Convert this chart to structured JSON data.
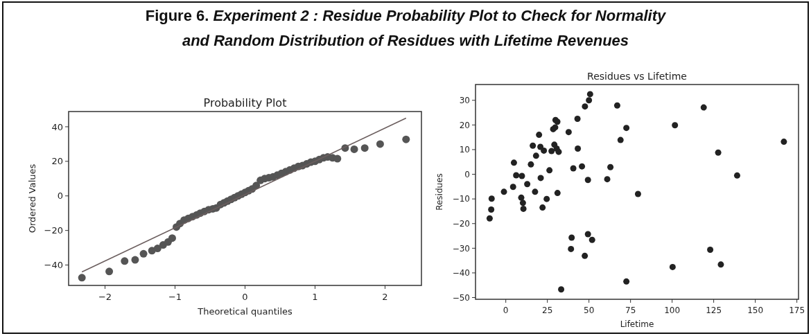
{
  "chart_data": [
    {
      "type": "scatter",
      "title": "Probability Plot",
      "xlabel": "Theoretical quantiles",
      "ylabel": "Ordered Values",
      "annotations": [
        "Figure 6. Experiment 2 : Residue Probability Plot to Check for Normality",
        "and Random Distribution of Residues with Lifetime Revenues"
      ],
      "xlim": [
        -2.52,
        2.52
      ],
      "ylim": [
        -51.8,
        48.8
      ],
      "xticks": [
        {
          "value": -2,
          "label": "−2"
        },
        {
          "value": -1,
          "label": "−1"
        },
        0,
        1,
        2
      ],
      "yticks": [
        {
          "value": -40,
          "label": "−40"
        },
        {
          "value": -20,
          "label": "−20"
        },
        0,
        20,
        40
      ],
      "series": [
        {
          "marker": "circle",
          "color": "#555555",
          "x": [
            -2.33,
            -1.94,
            -1.72,
            -1.57,
            -1.45,
            -1.33,
            -1.25,
            -1.17,
            -1.1,
            -1.04,
            -0.98,
            -0.93,
            -0.87,
            -0.81,
            -0.75,
            -0.69,
            -0.64,
            -0.58,
            -0.52,
            -0.46,
            -0.41,
            -0.35,
            -0.3,
            -0.25,
            -0.2,
            -0.15,
            -0.1,
            -0.05,
            0,
            0.05,
            0.1,
            0.16,
            0.22,
            0.28,
            0.34,
            0.4,
            0.46,
            0.52,
            0.58,
            0.64,
            0.7,
            0.76,
            0.82,
            0.88,
            0.94,
            1.0,
            1.06,
            1.12,
            1.18,
            1.25,
            1.32,
            1.43,
            1.56,
            1.71,
            1.93,
            2.3
          ],
          "values": [
            -47.3,
            -43.7,
            -37.7,
            -37,
            -33.5,
            -31.7,
            -30.4,
            -28.4,
            -26.7,
            -24.4,
            -18,
            -16,
            -14,
            -13,
            -12,
            -11,
            -10,
            -9,
            -8,
            -7.5,
            -7,
            -5,
            -4,
            -3,
            -2,
            -1,
            0,
            1,
            2,
            3,
            4,
            6,
            9,
            10,
            10.5,
            11,
            12,
            13,
            14,
            15,
            16,
            17,
            17.5,
            18.5,
            19.5,
            20,
            21,
            22,
            22.5,
            22,
            21.5,
            27.7,
            27,
            27.7,
            30,
            32.7
          ]
        },
        {
          "type": "line",
          "color": "#6b5e5e",
          "x": [
            -2.33,
            2.3
          ],
          "values": [
            -44,
            45
          ]
        }
      ]
    },
    {
      "type": "scatter",
      "title": "Residues vs Lifetime",
      "xlabel": "Lifetime",
      "ylabel": "Residues",
      "xlim": [
        -18.2,
        176
      ],
      "ylim": [
        -50.7,
        36.4
      ],
      "xticks": [
        0,
        25,
        50,
        75,
        100,
        125,
        150,
        175
      ],
      "yticks": [
        {
          "value": -50,
          "label": "−50"
        },
        {
          "value": -40,
          "label": "−40"
        },
        {
          "value": -30,
          "label": "−30"
        },
        {
          "value": -20,
          "label": "−20"
        },
        {
          "value": -10,
          "label": "−10"
        },
        0,
        10,
        20,
        30
      ],
      "series": [
        {
          "marker": "circle",
          "color": "#222222",
          "x": [
            -9.7,
            -8.75,
            -8.5,
            -1.1,
            4.4,
            4.9,
            6.25,
            9.7,
            9.3,
            10.3,
            10.6,
            12.9,
            15.1,
            16.25,
            17.6,
            18.2,
            20,
            21,
            20.8,
            22.9,
            22.1,
            24.6,
            26.25,
            27.5,
            28.5,
            29.2,
            29.7,
            29.9,
            31,
            30.6,
            31.8,
            31.1,
            33.3,
            37.8,
            39.6,
            39.2,
            40.6,
            43.1,
            43.3,
            45.8,
            47.5,
            47.6,
            49.4,
            49.4,
            50,
            50.7,
            51.9,
            61,
            62.9,
            67,
            72.5,
            69,
            79.5,
            72.5,
            101.7,
            100.3,
            119,
            127.7,
            122.9,
            129.3,
            139.1,
            167.2
          ],
          "values": [
            -17.9,
            -14.3,
            -9.9,
            -7.1,
            -5.1,
            4.7,
            -0.4,
            -0.7,
            -9.5,
            -11.6,
            -14,
            -4,
            4,
            11.6,
            -7.1,
            7.5,
            16,
            -1.5,
            11.1,
            9.6,
            -13.5,
            -10,
            1.6,
            9.4,
            18.3,
            12,
            19,
            22,
            21.3,
            10.4,
            9.1,
            -7.6,
            -46.7,
            17.1,
            -25.7,
            -30.3,
            2.4,
            22.5,
            10.4,
            3.2,
            -33.1,
            27.5,
            -2.3,
            -24.3,
            30,
            32.5,
            -26.6,
            -2,
            2.9,
            27.9,
            18.8,
            13.9,
            -8,
            -43.5,
            19.9,
            -37.6,
            27.1,
            8.8,
            -30.6,
            -36.6,
            -0.5,
            13.2
          ]
        }
      ]
    }
  ]
}
